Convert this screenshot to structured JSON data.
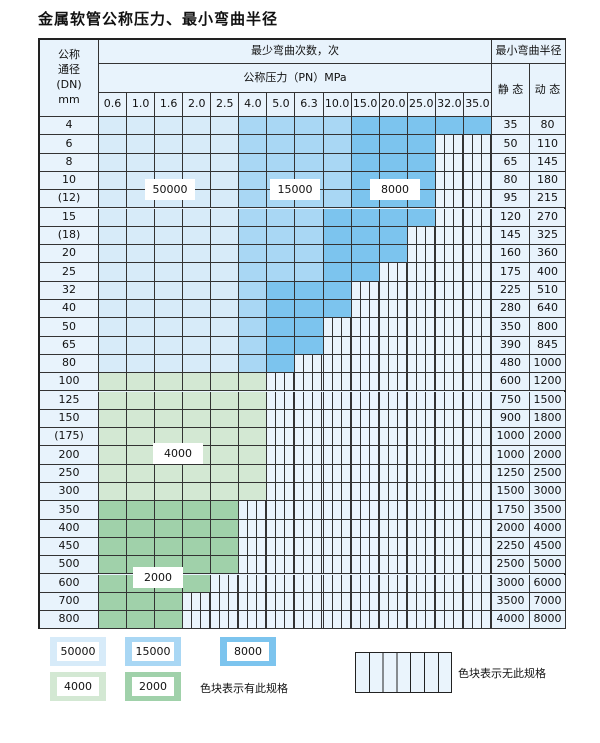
{
  "title": "金属软管公称压力、最小弯曲半径",
  "header": {
    "dn_label": "公称\n通径\n(DN)\nmm",
    "cycles_label": "最少弯曲次数，次",
    "pressure_label": "公称压力（PN）MPa",
    "radius_label": "最小弯曲半径",
    "static_label": "静 态",
    "dynamic_label": "动 态",
    "pressures": [
      "0.6",
      "1.0",
      "1.6",
      "2.0",
      "2.5",
      "4.0",
      "5.0",
      "6.3",
      "10.0",
      "15.0",
      "20.0",
      "25.0",
      "32.0",
      "35.0"
    ]
  },
  "colors": {
    "50000": "#d7ebf9",
    "15000": "#a9d7f4",
    "8000": "#7cc4ee",
    "4000": "#d3e8d3",
    "2000": "#a0d1aa",
    "none": "#eaf4fc"
  },
  "cell_legend_codes": {
    "a": "50000",
    "b": "15000",
    "c": "8000",
    "g": "4000",
    "h": "2000",
    "x": "none"
  },
  "rows": [
    {
      "dn": "4",
      "static": "35",
      "dynamic": "80",
      "cells": "aaaaabbbbccccc"
    },
    {
      "dn": "6",
      "static": "50",
      "dynamic": "110",
      "cells": "aaaaabbbbcccxx"
    },
    {
      "dn": "8",
      "static": "65",
      "dynamic": "145",
      "cells": "aaaaabbbbcccxx"
    },
    {
      "dn": "10",
      "static": "80",
      "dynamic": "180",
      "cells": "aaaaabbbbcccxx"
    },
    {
      "dn": "(12)",
      "static": "95",
      "dynamic": "215",
      "cells": "aaaaabbbbcccxx"
    },
    {
      "dn": "15",
      "static": "120",
      "dynamic": "270",
      "cells": "aaaaabbbccccxx"
    },
    {
      "dn": "(18)",
      "static": "145",
      "dynamic": "325",
      "cells": "aaaaabbbcccxxx"
    },
    {
      "dn": "20",
      "static": "160",
      "dynamic": "360",
      "cells": "aaaaabbbcccxxx"
    },
    {
      "dn": "25",
      "static": "175",
      "dynamic": "400",
      "cells": "aaaaabbbccxxxx"
    },
    {
      "dn": "32",
      "static": "225",
      "dynamic": "510",
      "cells": "aaaaabcccxxxxx"
    },
    {
      "dn": "40",
      "static": "280",
      "dynamic": "640",
      "cells": "aaaaabcccxxxxx"
    },
    {
      "dn": "50",
      "static": "350",
      "dynamic": "800",
      "cells": "aaaaabccxxxxxx"
    },
    {
      "dn": "65",
      "static": "390",
      "dynamic": "845",
      "cells": "aaaaabccxxxxxx"
    },
    {
      "dn": "80",
      "static": "480",
      "dynamic": "1000",
      "cells": "aaaaabcxxxxxxx"
    },
    {
      "dn": "100",
      "static": "600",
      "dynamic": "1200",
      "cells": "ggggggxxxxxxxx"
    },
    {
      "dn": "125",
      "static": "750",
      "dynamic": "1500",
      "cells": "ggggggxxxxxxxx"
    },
    {
      "dn": "150",
      "static": "900",
      "dynamic": "1800",
      "cells": "ggggggxxxxxxxx"
    },
    {
      "dn": "(175)",
      "static": "1000",
      "dynamic": "2000",
      "cells": "ggggggxxxxxxxx"
    },
    {
      "dn": "200",
      "static": "1000",
      "dynamic": "2000",
      "cells": "ggggggxxxxxxxx"
    },
    {
      "dn": "250",
      "static": "1250",
      "dynamic": "2500",
      "cells": "ggggggxxxxxxxx"
    },
    {
      "dn": "300",
      "static": "1500",
      "dynamic": "3000",
      "cells": "ggggggxxxxxxxx"
    },
    {
      "dn": "350",
      "static": "1750",
      "dynamic": "3500",
      "cells": "hhhhhxxxxxxxxx"
    },
    {
      "dn": "400",
      "static": "2000",
      "dynamic": "4000",
      "cells": "hhhhhxxxxxxxxx"
    },
    {
      "dn": "450",
      "static": "2250",
      "dynamic": "4500",
      "cells": "hhhhhxxxxxxxxx"
    },
    {
      "dn": "500",
      "static": "2500",
      "dynamic": "5000",
      "cells": "hhhhhxxxxxxxxx"
    },
    {
      "dn": "600",
      "static": "3000",
      "dynamic": "6000",
      "cells": "hhhhxxxxxxxxxx"
    },
    {
      "dn": "700",
      "static": "3500",
      "dynamic": "7000",
      "cells": "hhhxxxxxxxxxxx"
    },
    {
      "dn": "800",
      "static": "4000",
      "dynamic": "8000",
      "cells": "hhhxxxxxxxxxxx"
    }
  ],
  "region_labels": [
    "50000",
    "15000",
    "8000",
    "4000",
    "2000"
  ],
  "legend": {
    "items": [
      "50000",
      "15000",
      "8000",
      "4000",
      "2000"
    ],
    "has_spec_text": "色块表示有此规格",
    "no_spec_text": "色块表示无此规格"
  }
}
